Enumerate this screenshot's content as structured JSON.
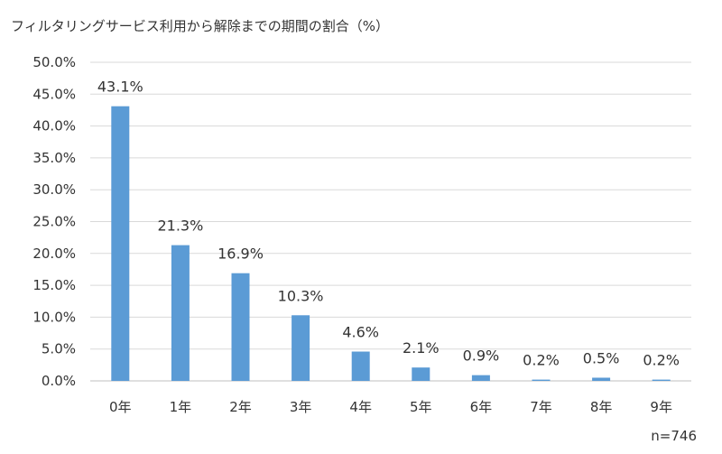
{
  "chart_data": {
    "type": "bar",
    "title": "フィルタリングサービス利用から解除までの期間の割合（%）",
    "categories": [
      "0年",
      "1年",
      "2年",
      "3年",
      "4年",
      "5年",
      "6年",
      "7年",
      "8年",
      "9年"
    ],
    "values": [
      43.1,
      21.3,
      16.9,
      10.3,
      4.6,
      2.1,
      0.9,
      0.2,
      0.5,
      0.2
    ],
    "data_labels": [
      "43.1%",
      "21.3%",
      "16.9%",
      "10.3%",
      "4.6%",
      "2.1%",
      "0.9%",
      "0.2%",
      "0.5%",
      "0.2%"
    ],
    "y_ticks": [
      0,
      5,
      10,
      15,
      20,
      25,
      30,
      35,
      40,
      45,
      50
    ],
    "y_tick_labels": [
      "0.0%",
      "5.0%",
      "10.0%",
      "15.0%",
      "20.0%",
      "25.0%",
      "30.0%",
      "35.0%",
      "40.0%",
      "45.0%",
      "50.0%"
    ],
    "ylim": [
      0,
      50
    ],
    "grid": true,
    "xlabel": "",
    "ylabel": "",
    "annotation": "n=746",
    "colors": {
      "bar": "#5B9BD5",
      "grid": "#D9D9D9",
      "axis": "#BFBFBF",
      "text": "#333333"
    }
  }
}
